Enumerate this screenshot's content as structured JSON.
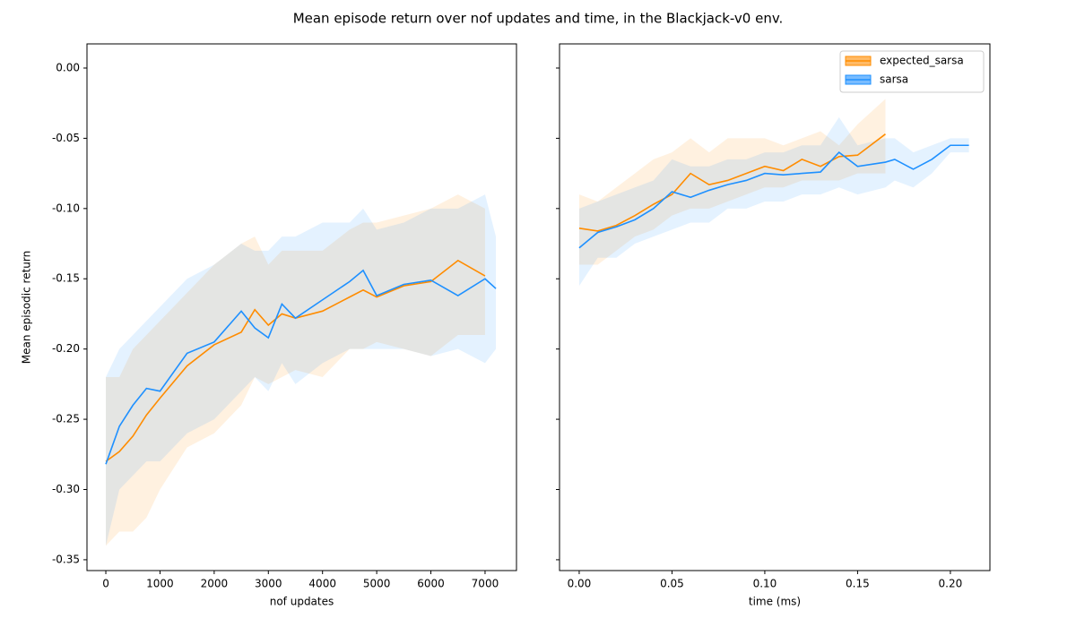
{
  "title": "Mean episode return over nof updates and time, in the Blackjack-v0 env.",
  "chart_data": [
    {
      "type": "line",
      "xlabel": "nof updates",
      "ylabel": "Mean episodic return",
      "xlim": [
        -348,
        7580
      ],
      "ylim": [
        -0.3577,
        0.0172
      ],
      "xticks": [
        0,
        1000,
        2000,
        3000,
        4000,
        5000,
        6000,
        7000
      ],
      "yticks": [
        {
          "value": 0,
          "label": "0.00"
        },
        -0.05,
        {
          "value": -0.1,
          "label": "-0.10"
        },
        -0.15,
        {
          "value": -0.2,
          "label": "-0.20"
        },
        -0.25,
        {
          "value": -0.3,
          "label": "-0.30"
        },
        -0.35
      ],
      "ytick_labels": true,
      "x": [
        0,
        250,
        500,
        750,
        1000,
        1500,
        2000,
        2500,
        2750,
        3000,
        3250,
        3500,
        4000,
        4500,
        4750,
        5000,
        5500,
        6000,
        6500,
        7000,
        7200
      ],
      "series": [
        {
          "color": "#ff8c00",
          "values": [
            -0.28,
            -0.273,
            -0.262,
            -0.247,
            -0.235,
            -0.212,
            -0.197,
            -0.188,
            -0.172,
            -0.183,
            -0.175,
            -0.178,
            -0.173,
            -0.163,
            -0.158,
            -0.163,
            -0.155,
            -0.152,
            -0.137,
            -0.148,
            null
          ],
          "lower": [
            -0.34,
            -0.33,
            -0.33,
            -0.32,
            -0.3,
            -0.27,
            -0.26,
            -0.24,
            -0.22,
            -0.225,
            -0.22,
            -0.215,
            -0.22,
            -0.2,
            -0.2,
            -0.195,
            -0.2,
            -0.205,
            -0.19,
            -0.19,
            null
          ],
          "upper": [
            -0.22,
            -0.22,
            -0.2,
            -0.19,
            -0.18,
            -0.16,
            -0.14,
            -0.125,
            -0.12,
            -0.14,
            -0.13,
            -0.13,
            -0.13,
            -0.115,
            -0.11,
            -0.11,
            -0.105,
            -0.1,
            -0.09,
            -0.1,
            null
          ]
        },
        {
          "color": "#1e90ff",
          "values": [
            -0.282,
            -0.255,
            -0.24,
            -0.228,
            -0.23,
            -0.203,
            -0.195,
            -0.173,
            -0.185,
            -0.192,
            -0.168,
            -0.178,
            -0.165,
            -0.152,
            -0.144,
            -0.162,
            -0.154,
            -0.151,
            -0.162,
            -0.15,
            -0.157
          ],
          "lower": [
            -0.34,
            -0.3,
            -0.29,
            -0.28,
            -0.28,
            -0.26,
            -0.25,
            -0.23,
            -0.22,
            -0.23,
            -0.21,
            -0.225,
            -0.21,
            -0.2,
            -0.2,
            -0.2,
            -0.2,
            -0.205,
            -0.2,
            -0.21,
            -0.2
          ],
          "upper": [
            -0.22,
            -0.2,
            -0.19,
            -0.18,
            -0.17,
            -0.15,
            -0.14,
            -0.125,
            -0.13,
            -0.13,
            -0.12,
            -0.12,
            -0.11,
            -0.11,
            -0.1,
            -0.115,
            -0.11,
            -0.1,
            -0.1,
            -0.09,
            -0.12
          ]
        }
      ]
    },
    {
      "type": "line",
      "xlabel": "time (ms)",
      "xlim": [
        -0.0106,
        0.2213
      ],
      "ylim": [
        -0.3577,
        0.0172
      ],
      "xticks": [
        {
          "value": 0,
          "label": "0.00"
        },
        0.05,
        {
          "value": 0.1,
          "label": "0.10"
        },
        0.15,
        {
          "value": 0.2,
          "label": "0.20"
        }
      ],
      "yticks": [
        0,
        -0.05,
        -0.1,
        -0.15,
        -0.2,
        -0.25,
        -0.3,
        -0.35
      ],
      "ytick_labels": false,
      "legend": "upper right",
      "x": [
        0,
        0.01,
        0.02,
        0.03,
        0.04,
        0.05,
        0.06,
        0.07,
        0.08,
        0.09,
        0.1,
        0.11,
        0.12,
        0.13,
        0.14,
        0.15,
        0.165,
        0.17,
        0.18,
        0.19,
        0.2,
        0.21
      ],
      "series": [
        {
          "name": "expected_sarsa",
          "color": "#ff8c00",
          "values": [
            -0.114,
            -0.116,
            -0.112,
            -0.105,
            -0.097,
            -0.09,
            -0.075,
            -0.083,
            -0.08,
            -0.075,
            -0.07,
            -0.073,
            -0.065,
            -0.07,
            -0.063,
            -0.062,
            -0.047,
            null,
            null,
            null,
            null,
            null
          ],
          "lower": [
            -0.14,
            -0.14,
            -0.13,
            -0.12,
            -0.115,
            -0.105,
            -0.1,
            -0.1,
            -0.095,
            -0.09,
            -0.085,
            -0.085,
            -0.08,
            -0.08,
            -0.08,
            -0.075,
            -0.075,
            null,
            null,
            null,
            null,
            null
          ],
          "upper": [
            -0.09,
            -0.095,
            -0.085,
            -0.075,
            -0.065,
            -0.06,
            -0.05,
            -0.06,
            -0.05,
            -0.05,
            -0.05,
            -0.055,
            -0.05,
            -0.045,
            -0.055,
            -0.04,
            -0.022,
            null,
            null,
            null,
            null,
            null
          ]
        },
        {
          "name": "sarsa",
          "color": "#1e90ff",
          "values": [
            -0.128,
            -0.117,
            -0.113,
            -0.108,
            -0.1,
            -0.088,
            -0.092,
            -0.087,
            -0.083,
            -0.08,
            -0.075,
            -0.076,
            -0.075,
            -0.074,
            -0.06,
            -0.07,
            -0.067,
            -0.065,
            -0.072,
            -0.065,
            -0.055,
            -0.055
          ],
          "lower": [
            -0.155,
            -0.135,
            -0.135,
            -0.125,
            -0.12,
            -0.115,
            -0.11,
            -0.11,
            -0.1,
            -0.1,
            -0.095,
            -0.095,
            -0.09,
            -0.09,
            -0.085,
            -0.09,
            -0.085,
            -0.08,
            -0.085,
            -0.075,
            -0.06,
            -0.06
          ],
          "upper": [
            -0.1,
            -0.095,
            -0.09,
            -0.085,
            -0.08,
            -0.065,
            -0.07,
            -0.07,
            -0.065,
            -0.065,
            -0.06,
            -0.06,
            -0.055,
            -0.055,
            -0.035,
            -0.055,
            -0.05,
            -0.05,
            -0.06,
            -0.055,
            -0.05,
            -0.05
          ]
        }
      ]
    }
  ]
}
